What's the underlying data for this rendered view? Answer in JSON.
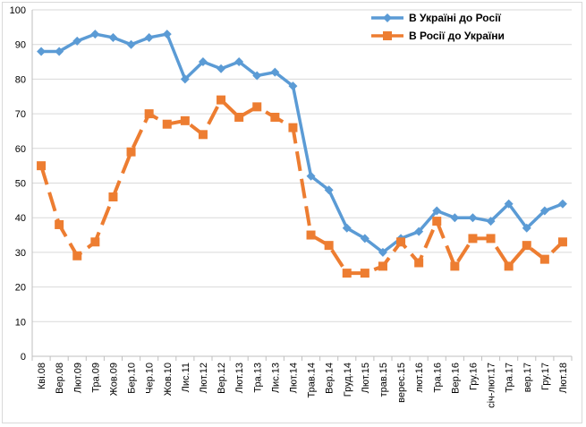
{
  "chart_data": {
    "type": "line",
    "title": "",
    "xlabel": "",
    "ylabel": "",
    "ylim": [
      0,
      100
    ],
    "yticks": [
      0,
      10,
      20,
      30,
      40,
      50,
      60,
      70,
      80,
      90,
      100
    ],
    "grid": true,
    "legend_position": "top-right",
    "categories": [
      "Кві.08",
      "Вер.08",
      "Лют.09",
      "Тра.09",
      "Жов.09",
      "Бер.10",
      "Чер.10",
      "Жов.10",
      "Лис.11",
      "Лют.12",
      "Вер.12",
      "Лют.13",
      "Тра.13",
      "Лис.13",
      "Лют.14",
      "Трав.14",
      "Вер.14",
      "Груд.14",
      "Лют.15",
      "трав.15",
      "верес.15",
      "лют.16",
      "Тра.16",
      "Вер.16",
      "Гру.16",
      "січ-лют.17",
      "Тра.17",
      "вер.17",
      "Гру.17",
      "Лют.18"
    ],
    "series": [
      {
        "name": "В Україні до Росії",
        "color": "#5B9BD5",
        "marker": "diamond",
        "dashed": false,
        "values": [
          88,
          88,
          91,
          93,
          92,
          90,
          92,
          93,
          80,
          85,
          83,
          85,
          81,
          82,
          78,
          52,
          48,
          37,
          34,
          30,
          34,
          36,
          42,
          40,
          40,
          39,
          44,
          37,
          42,
          44
        ]
      },
      {
        "name": "В Росії до України",
        "color": "#ED7D31",
        "marker": "square",
        "dashed": true,
        "values": [
          55,
          38,
          29,
          33,
          46,
          59,
          70,
          67,
          68,
          64,
          74,
          69,
          72,
          69,
          66,
          35,
          32,
          24,
          24,
          26,
          33,
          27,
          39,
          26,
          34,
          34,
          26,
          32,
          28,
          33
        ]
      }
    ]
  }
}
